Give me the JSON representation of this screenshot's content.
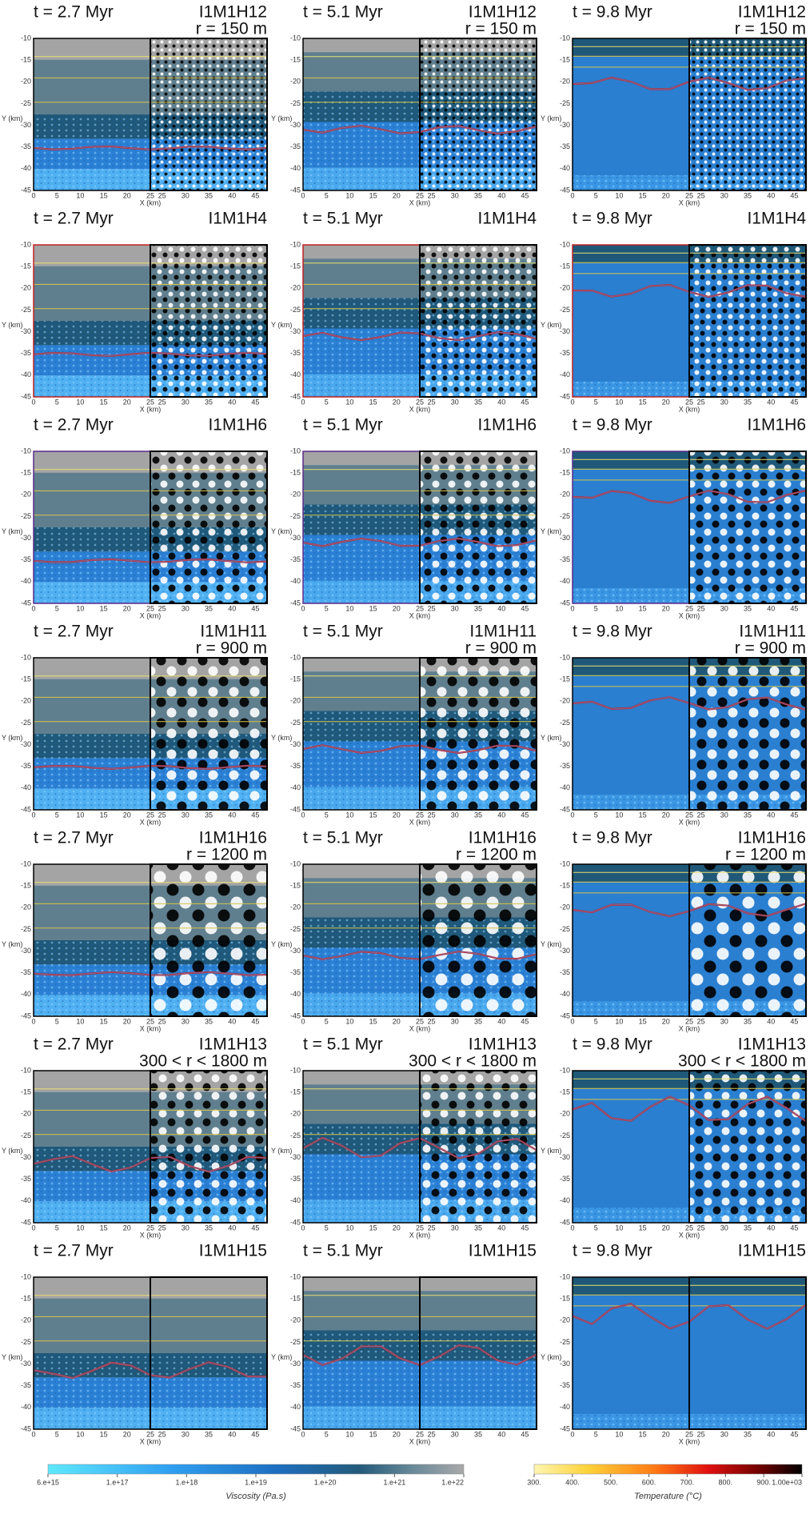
{
  "panels": [
    {
      "time": "t = 2.7 Myr",
      "model": "I1M1H12",
      "radius": "r = 150 m"
    },
    {
      "time": "t = 5.1 Myr",
      "model": "I1M1H12",
      "radius": "r = 150 m"
    },
    {
      "time": "t = 9.8 Myr",
      "model": "I1M1H12",
      "radius": "r = 150 m"
    },
    {
      "time": "t = 2.7 Myr",
      "model": "I1M1H4"
    },
    {
      "time": "t = 5.1 Myr",
      "model": "I1M1H4"
    },
    {
      "time": "t = 9.8 Myr",
      "model": "I1M1H4"
    },
    {
      "time": "t = 2.7 Myr",
      "model": "I1M1H6"
    },
    {
      "time": "t = 5.1 Myr",
      "model": "I1M1H6"
    },
    {
      "time": "t = 9.8 Myr",
      "model": "I1M1H6"
    },
    {
      "time": "t = 2.7 Myr",
      "model": "I1M1H11",
      "radius": "r = 900 m"
    },
    {
      "time": "t = 5.1 Myr",
      "model": "I1M1H11",
      "radius": "r = 900 m"
    },
    {
      "time": "t = 9.8 Myr",
      "model": "I1M1H11",
      "radius": "r = 900 m"
    },
    {
      "time": "t = 2.7 Myr",
      "model": "I1M1H16",
      "radius": "r = 1200 m"
    },
    {
      "time": "t = 5.1 Myr",
      "model": "I1M1H16",
      "radius": "r = 1200 m"
    },
    {
      "time": "t = 9.8 Myr",
      "model": "I1M1H16",
      "radius": "r = 1200 m"
    },
    {
      "time": "t = 2.7 Myr",
      "model": "I1M1H13",
      "radius": "300 < r < 1800 m"
    },
    {
      "time": "t = 5.1 Myr",
      "model": "I1M1H13",
      "radius": "300 < r < 1800 m"
    },
    {
      "time": "t = 9.8 Myr",
      "model": "I1M1H13",
      "radius": "300 < r < 1800 m"
    },
    {
      "time": "t = 2.7 Myr",
      "model": "I1M1H15"
    },
    {
      "time": "t = 5.1 Myr",
      "model": "I1M1H15"
    },
    {
      "time": "t = 9.8 Myr",
      "model": "I1M1H15"
    }
  ],
  "axes": {
    "y_label": "Y (km)",
    "x_label": "X (km)",
    "yticks": [
      "-10",
      "-15",
      "-20",
      "-25",
      "-30",
      "-35",
      "-40",
      "-45"
    ],
    "xticks": [
      "0",
      "5",
      "10",
      "15",
      "20",
      "25",
      "25",
      "30",
      "35",
      "40",
      "45"
    ]
  },
  "colorbars": [
    {
      "label": "Viscosity (Pa.s)",
      "ticks": [
        "6.e+15",
        "1.e+17",
        "1.e+18",
        "1.e+19",
        "1.e+20",
        "1.e+21",
        "1.e+22"
      ]
    },
    {
      "label": "Temperature (°C)",
      "ticks": [
        "300.",
        "400.",
        "500.",
        "600.",
        "700.",
        "800.",
        "900.",
        "1.00e+03"
      ]
    }
  ]
}
